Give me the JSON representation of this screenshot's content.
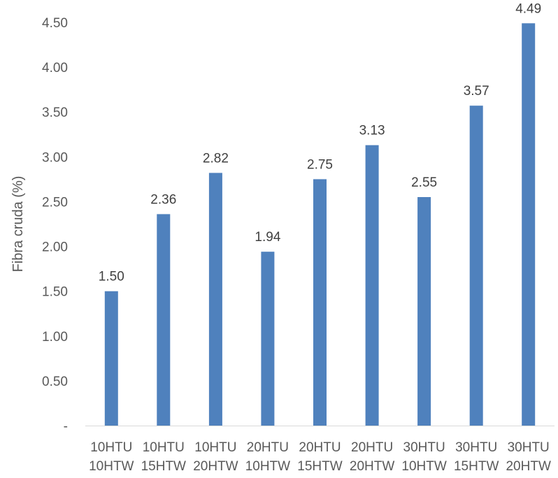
{
  "chart_data": {
    "type": "bar",
    "title": "",
    "xlabel": "",
    "ylabel": "Fibra cruda (%)",
    "ylim": [
      0,
      4.5
    ],
    "yticks": [
      "-",
      "0.50",
      "1.00",
      "1.50",
      "2.00",
      "2.50",
      "3.00",
      "3.50",
      "4.00",
      "4.50"
    ],
    "categories": [
      [
        "10HTU",
        "10HTW"
      ],
      [
        "10HTU",
        "15HTW"
      ],
      [
        "10HTU",
        "20HTW"
      ],
      [
        "20HTU",
        "10HTW"
      ],
      [
        "20HTU",
        "15HTW"
      ],
      [
        "20HTU",
        "20HTW"
      ],
      [
        "30HTU",
        "10HTW"
      ],
      [
        "30HTU",
        "15HTW"
      ],
      [
        "30HTU",
        "20HTW"
      ]
    ],
    "values": [
      1.5,
      2.36,
      2.82,
      1.94,
      2.75,
      3.13,
      2.55,
      3.57,
      4.49
    ],
    "data_labels": [
      "1.50",
      "2.36",
      "2.82",
      "1.94",
      "2.75",
      "3.13",
      "2.55",
      "3.57",
      "4.49"
    ],
    "bar_color": "#4F81BD",
    "grid": false,
    "legend": "none"
  }
}
